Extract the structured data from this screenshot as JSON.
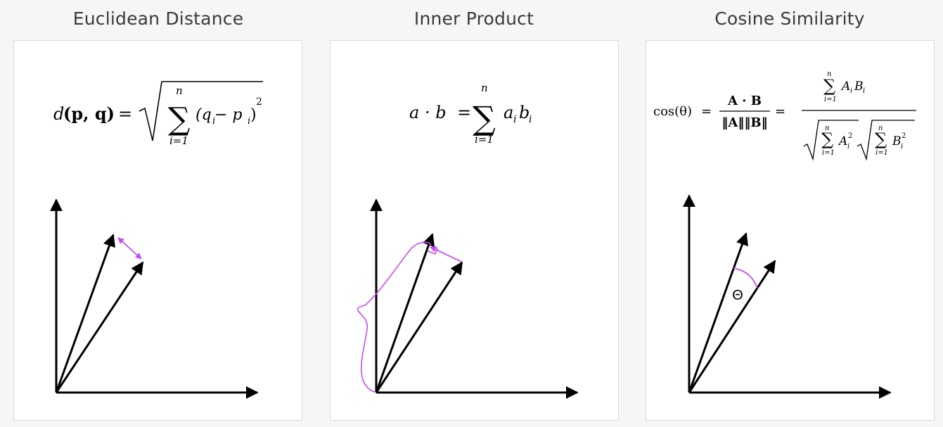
{
  "panels": [
    {
      "title": "Euclidean Distance"
    },
    {
      "title": "Inner Product"
    },
    {
      "title": "Cosine Similarity"
    }
  ],
  "formulas": {
    "euclidean": {
      "lhs_fn": "d",
      "lhs_args": "(p, q)",
      "eq": "=",
      "sum_upper": "n",
      "sum_lower": "i=1",
      "term": "(q",
      "q_sub": "i",
      "minus_p": " − p",
      "p_sub": "i",
      "close": ")",
      "power": "2"
    },
    "inner": {
      "lhs": "a · b",
      "eq": "=",
      "sum_upper": "n",
      "sum_lower": "i=1",
      "term_a": "a",
      "a_sub": "i",
      "term_b": "b",
      "b_sub": "i"
    },
    "cosine": {
      "lhs": "cos(θ)",
      "eq1": "=",
      "num1": "A · B",
      "den1": "‖A‖‖B‖",
      "eq2": "=",
      "sum_upper": "n",
      "sum_lower": "i=1",
      "num2_a": "A",
      "num2_a_sub": "i",
      "num2_b": "B",
      "num2_b_sub": "i",
      "den_a": "A",
      "den_a_sub": "i",
      "den_a_pow": "2",
      "den_b": "B",
      "den_b_sub": "i",
      "den_b_pow": "2"
    }
  },
  "diagram": {
    "angle_label": "Θ",
    "accent_color": "#c64cf4",
    "axis_color": "#000000"
  }
}
